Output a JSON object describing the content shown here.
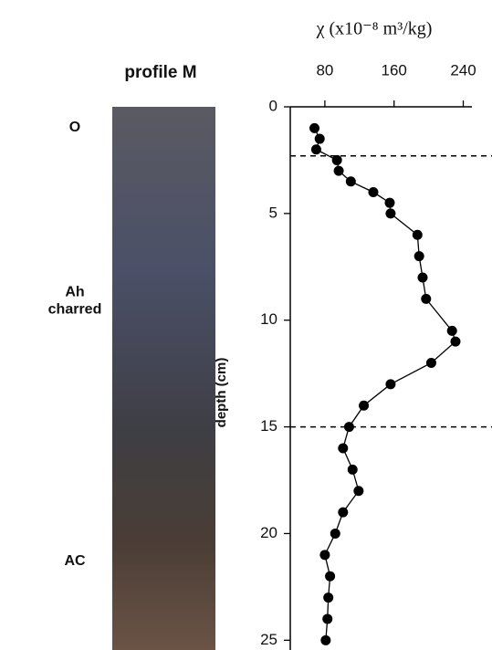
{
  "chart_data": {
    "type": "line",
    "title": "profile M",
    "x_label": "χ (x10⁻⁸ m³/kg)",
    "y_label": "depth (cm)",
    "horizon_labels": [
      [
        "O"
      ],
      [
        "Ah",
        "charred"
      ],
      [
        "AC"
      ]
    ],
    "x": [
      68,
      74,
      70,
      94,
      96,
      110,
      136,
      155,
      156,
      187,
      189,
      193,
      197,
      227,
      231,
      203,
      156,
      125,
      108,
      101,
      112,
      119,
      101,
      92,
      80,
      86,
      84,
      83,
      81
    ],
    "y": [
      1,
      1.5,
      2,
      2.5,
      3,
      3.5,
      4,
      4.5,
      5,
      6,
      7,
      8,
      9,
      10.5,
      11,
      12,
      13,
      14,
      15,
      16,
      17,
      18,
      19,
      20,
      21,
      22,
      23,
      24,
      25
    ],
    "color": "#000000",
    "xlim": [
      40,
      250
    ],
    "xticks": [
      80,
      160,
      240
    ],
    "ylim": [
      0,
      25.5
    ],
    "yticks": [
      0,
      5,
      10,
      15,
      20,
      25
    ],
    "y_inverted": true,
    "boundaries": [
      2.3,
      15
    ]
  }
}
